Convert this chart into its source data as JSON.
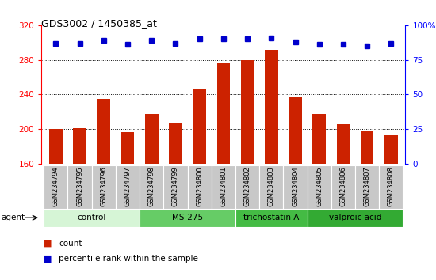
{
  "title": "GDS3002 / 1450385_at",
  "samples": [
    "GSM234794",
    "GSM234795",
    "GSM234796",
    "GSM234797",
    "GSM234798",
    "GSM234799",
    "GSM234800",
    "GSM234801",
    "GSM234802",
    "GSM234803",
    "GSM234804",
    "GSM234805",
    "GSM234806",
    "GSM234807",
    "GSM234808"
  ],
  "bar_values": [
    200,
    201,
    235,
    197,
    218,
    207,
    247,
    276,
    280,
    292,
    237,
    218,
    206,
    198,
    193
  ],
  "percentile_values": [
    87,
    87,
    89,
    86,
    89,
    87,
    90,
    90,
    90,
    91,
    88,
    86,
    86,
    85,
    87
  ],
  "bar_color": "#cc2200",
  "dot_color": "#0000cc",
  "ylim_left": [
    160,
    320
  ],
  "ylim_right": [
    0,
    100
  ],
  "yticks_left": [
    160,
    200,
    240,
    280,
    320
  ],
  "yticks_right": [
    0,
    25,
    50,
    75,
    100
  ],
  "grid_values": [
    200,
    240,
    280
  ],
  "groups": [
    {
      "label": "control",
      "start": 0,
      "end": 3,
      "color": "#d6f5d6"
    },
    {
      "label": "MS-275",
      "start": 4,
      "end": 7,
      "color": "#66cc66"
    },
    {
      "label": "trichostatin A",
      "start": 8,
      "end": 10,
      "color": "#44bb44"
    },
    {
      "label": "valproic acid",
      "start": 11,
      "end": 14,
      "color": "#33aa33"
    }
  ],
  "legend_bar_label": "count",
  "legend_dot_label": "percentile rank within the sample",
  "agent_label": "agent",
  "tick_label_color": "#c8c8c8"
}
